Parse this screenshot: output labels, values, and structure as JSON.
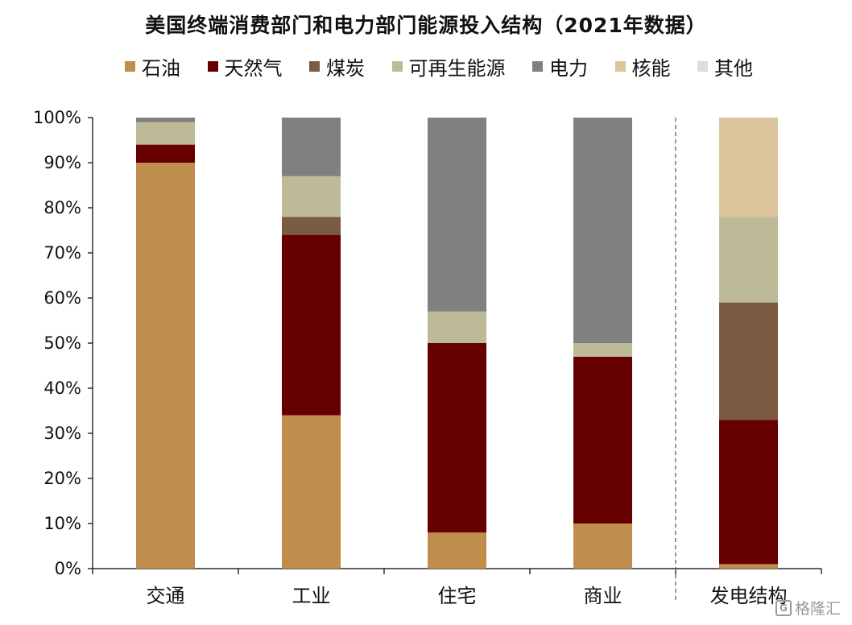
{
  "chart_data": {
    "type": "bar",
    "stacked": true,
    "title": "美国终端消费部门和电力部门能源投入结构（2021年数据）",
    "categories": [
      "交通",
      "工业",
      "住宅",
      "商业",
      "发电结构"
    ],
    "series": [
      {
        "name": "石油",
        "color": "#BF8D4C",
        "values": [
          90,
          34,
          8,
          10,
          1
        ]
      },
      {
        "name": "天然气",
        "color": "#660000",
        "values": [
          4,
          40,
          42,
          37,
          32
        ]
      },
      {
        "name": "煤炭",
        "color": "#7B5B41",
        "values": [
          0,
          4,
          0,
          0,
          26
        ]
      },
      {
        "name": "可再生能源",
        "color": "#BDBA97",
        "values": [
          5,
          9,
          7,
          3,
          19
        ]
      },
      {
        "name": "电力",
        "color": "#808080",
        "values": [
          1,
          13,
          43,
          50,
          0
        ]
      },
      {
        "name": "核能",
        "color": "#DCC59C",
        "values": [
          0,
          0,
          0,
          0,
          22
        ]
      },
      {
        "name": "其他",
        "color": "#DDDDDD",
        "values": [
          0,
          0,
          0,
          0,
          0
        ]
      }
    ],
    "ylim": [
      0,
      100
    ],
    "yticks": [
      "0%",
      "10%",
      "20%",
      "30%",
      "40%",
      "50%",
      "60%",
      "70%",
      "80%",
      "90%",
      "100%"
    ],
    "grid": false,
    "legend_position": "top",
    "separator_before_category": "发电结构"
  },
  "watermark": {
    "text": "格隆汇",
    "mark": "G"
  }
}
